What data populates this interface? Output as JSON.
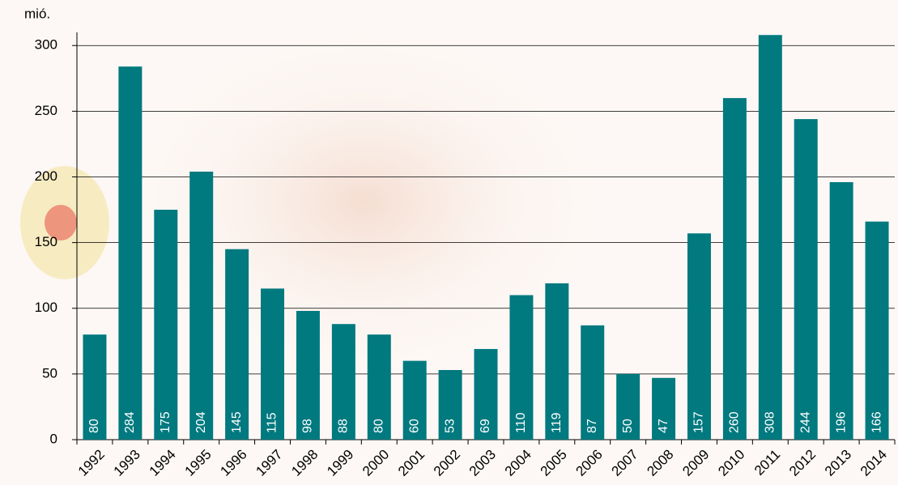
{
  "chart_data": {
    "type": "bar",
    "y_label": "mió.",
    "categories": [
      "1992",
      "1993",
      "1994",
      "1995",
      "1996",
      "1997",
      "1998",
      "1999",
      "2000",
      "2001",
      "2002",
      "2003",
      "2004",
      "2005",
      "2006",
      "2007",
      "2008",
      "2009",
      "2010",
      "2011",
      "2012",
      "2013",
      "2014"
    ],
    "values": [
      80,
      284,
      175,
      204,
      145,
      115,
      98,
      88,
      80,
      60,
      53,
      69,
      110,
      119,
      87,
      50,
      47,
      157,
      260,
      308,
      244,
      196,
      166
    ],
    "color": "#00797f",
    "ylim": [
      0,
      310
    ],
    "yticks": [
      0,
      50,
      100,
      150,
      200,
      250,
      300
    ],
    "grid": true
  }
}
